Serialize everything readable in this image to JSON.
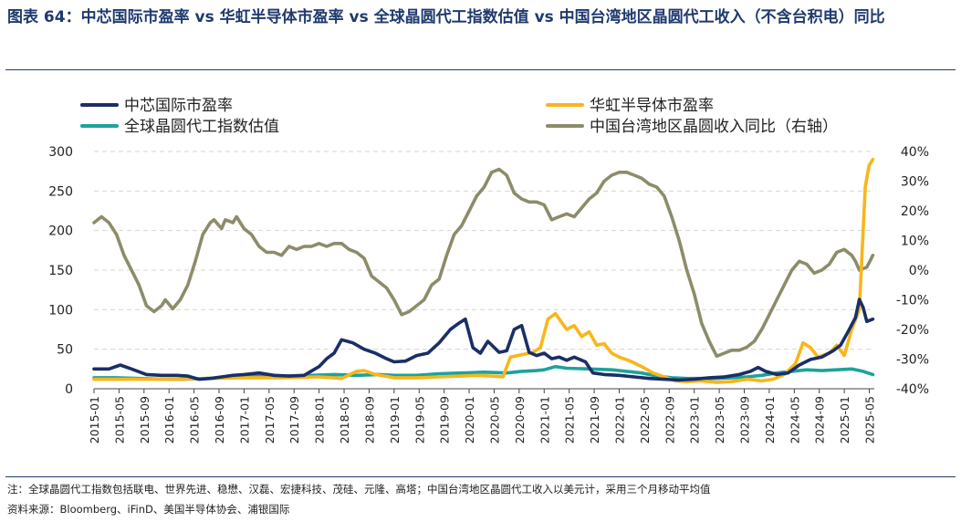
{
  "header": {
    "title": "图表 64：中芯国际市盈率 vs 华虹半导体市盈率 vs 全球晶圆代工指数估值 vs 中国台湾地区晶圆代工收入（不含台积电）同比"
  },
  "footer": {
    "note": "注：全球晶圆代工指数包括联电、世界先进、稳懋、汉磊、宏捷科技、茂硅、元隆、高塔；中国台湾地区晶圆代工收入以美元计，采用三个月移动平均值",
    "source": "资料来源：Bloomberg、iFinD、美国半导体协会、浦银国际"
  },
  "chart_data": {
    "type": "line",
    "title": "",
    "x_ticks": [
      "2015-01",
      "2015-05",
      "2015-09",
      "2016-01",
      "2016-05",
      "2016-09",
      "2017-01",
      "2017-05",
      "2017-09",
      "2018-01",
      "2018-05",
      "2018-09",
      "2019-01",
      "2019-05",
      "2019-09",
      "2020-01",
      "2020-05",
      "2020-09",
      "2021-01",
      "2021-05",
      "2021-09",
      "2022-01",
      "2022-05",
      "2022-09",
      "2023-01",
      "2023-05",
      "2023-09",
      "2024-01",
      "2024-05",
      "2024-09",
      "2025-01",
      "2025-05"
    ],
    "y_left": {
      "min": 0,
      "max": 300,
      "ticks": [
        "0",
        "50",
        "100",
        "150",
        "200",
        "250",
        "300"
      ]
    },
    "y_right": {
      "min": -40,
      "max": 40,
      "ticks": [
        "-40%",
        "-30%",
        "-20%",
        "-10%",
        "0%",
        "10%",
        "20%",
        "30%",
        "40%"
      ]
    },
    "grid": "horizontal dashed",
    "legend_position": "top",
    "colors": {
      "smic": "#1a2f66",
      "hua": "#f8b61a",
      "global": "#1ba39c",
      "taiwan": "#8d8c6a"
    },
    "series": [
      {
        "name": "中芯国际市盈率",
        "key": "smic",
        "axis": "left",
        "points": [
          [
            2015.0,
            25
          ],
          [
            2015.2,
            25
          ],
          [
            2015.35,
            30
          ],
          [
            2015.5,
            25
          ],
          [
            2015.7,
            18
          ],
          [
            2015.9,
            17
          ],
          [
            2016.1,
            17
          ],
          [
            2016.25,
            16
          ],
          [
            2016.4,
            12
          ],
          [
            2016.55,
            13
          ],
          [
            2016.7,
            15
          ],
          [
            2016.85,
            17
          ],
          [
            2017.0,
            18
          ],
          [
            2017.2,
            20
          ],
          [
            2017.4,
            17
          ],
          [
            2017.6,
            16
          ],
          [
            2017.8,
            17
          ],
          [
            2018.0,
            28
          ],
          [
            2018.1,
            38
          ],
          [
            2018.2,
            45
          ],
          [
            2018.3,
            62
          ],
          [
            2018.45,
            58
          ],
          [
            2018.6,
            50
          ],
          [
            2018.75,
            45
          ],
          [
            2018.9,
            38
          ],
          [
            2019.0,
            34
          ],
          [
            2019.15,
            35
          ],
          [
            2019.3,
            42
          ],
          [
            2019.45,
            45
          ],
          [
            2019.6,
            58
          ],
          [
            2019.75,
            75
          ],
          [
            2019.85,
            82
          ],
          [
            2019.95,
            88
          ],
          [
            2020.05,
            52
          ],
          [
            2020.15,
            45
          ],
          [
            2020.25,
            60
          ],
          [
            2020.4,
            46
          ],
          [
            2020.5,
            48
          ],
          [
            2020.6,
            75
          ],
          [
            2020.7,
            80
          ],
          [
            2020.8,
            46
          ],
          [
            2020.9,
            42
          ],
          [
            2021.0,
            45
          ],
          [
            2021.1,
            38
          ],
          [
            2021.2,
            40
          ],
          [
            2021.3,
            36
          ],
          [
            2021.4,
            40
          ],
          [
            2021.55,
            34
          ],
          [
            2021.65,
            20
          ],
          [
            2021.8,
            18
          ],
          [
            2022.0,
            17
          ],
          [
            2022.2,
            15
          ],
          [
            2022.4,
            13
          ],
          [
            2022.6,
            12
          ],
          [
            2022.8,
            11
          ],
          [
            2023.0,
            12
          ],
          [
            2023.2,
            14
          ],
          [
            2023.4,
            15
          ],
          [
            2023.6,
            18
          ],
          [
            2023.75,
            22
          ],
          [
            2023.85,
            27
          ],
          [
            2023.95,
            22
          ],
          [
            2024.1,
            18
          ],
          [
            2024.25,
            20
          ],
          [
            2024.4,
            30
          ],
          [
            2024.55,
            37
          ],
          [
            2024.7,
            40
          ],
          [
            2024.85,
            48
          ],
          [
            2024.95,
            55
          ],
          [
            2025.05,
            72
          ],
          [
            2025.15,
            90
          ],
          [
            2025.2,
            113
          ],
          [
            2025.25,
            103
          ],
          [
            2025.3,
            85
          ],
          [
            2025.38,
            88
          ]
        ]
      },
      {
        "name": "华虹半导体市盈率",
        "key": "hua",
        "axis": "left",
        "points": [
          [
            2015.0,
            12
          ],
          [
            2015.5,
            12
          ],
          [
            2016.0,
            12
          ],
          [
            2016.5,
            13
          ],
          [
            2017.0,
            14
          ],
          [
            2017.5,
            14
          ],
          [
            2018.0,
            15
          ],
          [
            2018.3,
            13
          ],
          [
            2018.5,
            22
          ],
          [
            2018.6,
            23
          ],
          [
            2018.75,
            18
          ],
          [
            2019.0,
            14
          ],
          [
            2019.3,
            14
          ],
          [
            2019.6,
            15
          ],
          [
            2019.9,
            16
          ],
          [
            2020.1,
            17
          ],
          [
            2020.3,
            16
          ],
          [
            2020.45,
            15
          ],
          [
            2020.55,
            40
          ],
          [
            2020.7,
            43
          ],
          [
            2020.85,
            46
          ],
          [
            2020.95,
            52
          ],
          [
            2021.05,
            88
          ],
          [
            2021.15,
            95
          ],
          [
            2021.3,
            75
          ],
          [
            2021.4,
            80
          ],
          [
            2021.5,
            66
          ],
          [
            2021.6,
            72
          ],
          [
            2021.7,
            55
          ],
          [
            2021.8,
            57
          ],
          [
            2021.9,
            45
          ],
          [
            2022.0,
            40
          ],
          [
            2022.15,
            35
          ],
          [
            2022.3,
            28
          ],
          [
            2022.45,
            20
          ],
          [
            2022.6,
            15
          ],
          [
            2022.75,
            10
          ],
          [
            2022.9,
            9
          ],
          [
            2023.1,
            10
          ],
          [
            2023.3,
            8
          ],
          [
            2023.5,
            9
          ],
          [
            2023.7,
            12
          ],
          [
            2023.9,
            10
          ],
          [
            2024.05,
            12
          ],
          [
            2024.2,
            18
          ],
          [
            2024.35,
            32
          ],
          [
            2024.45,
            58
          ],
          [
            2024.55,
            52
          ],
          [
            2024.65,
            40
          ],
          [
            2024.8,
            45
          ],
          [
            2024.9,
            55
          ],
          [
            2025.0,
            42
          ],
          [
            2025.1,
            75
          ],
          [
            2025.2,
            100
          ],
          [
            2025.28,
            255
          ],
          [
            2025.33,
            282
          ],
          [
            2025.38,
            290
          ]
        ]
      },
      {
        "name": "全球晶圆代工指数估值",
        "key": "global",
        "axis": "left",
        "points": [
          [
            2015.0,
            14
          ],
          [
            2015.3,
            14
          ],
          [
            2015.6,
            13
          ],
          [
            2015.9,
            12
          ],
          [
            2016.2,
            12
          ],
          [
            2016.5,
            13
          ],
          [
            2016.8,
            14
          ],
          [
            2017.0,
            15
          ],
          [
            2017.3,
            16
          ],
          [
            2017.6,
            16
          ],
          [
            2017.9,
            17
          ],
          [
            2018.2,
            18
          ],
          [
            2018.5,
            17
          ],
          [
            2018.8,
            18
          ],
          [
            2019.0,
            17
          ],
          [
            2019.3,
            17
          ],
          [
            2019.6,
            19
          ],
          [
            2019.9,
            20
          ],
          [
            2020.2,
            21
          ],
          [
            2020.5,
            20
          ],
          [
            2020.7,
            22
          ],
          [
            2020.9,
            23
          ],
          [
            2021.0,
            24
          ],
          [
            2021.15,
            28
          ],
          [
            2021.3,
            26
          ],
          [
            2021.6,
            25
          ],
          [
            2021.9,
            24
          ],
          [
            2022.1,
            22
          ],
          [
            2022.3,
            20
          ],
          [
            2022.5,
            16
          ],
          [
            2022.7,
            14
          ],
          [
            2022.9,
            13
          ],
          [
            2023.1,
            13
          ],
          [
            2023.3,
            13
          ],
          [
            2023.5,
            14
          ],
          [
            2023.7,
            15
          ],
          [
            2023.9,
            17
          ],
          [
            2024.1,
            20
          ],
          [
            2024.3,
            22
          ],
          [
            2024.5,
            24
          ],
          [
            2024.7,
            23
          ],
          [
            2024.9,
            24
          ],
          [
            2025.1,
            25
          ],
          [
            2025.25,
            22
          ],
          [
            2025.38,
            18
          ]
        ]
      },
      {
        "name": "中国台湾地区晶圆收入同比（右轴）",
        "key": "taiwan",
        "axis": "right",
        "points": [
          [
            2015.0,
            16
          ],
          [
            2015.1,
            18
          ],
          [
            2015.2,
            16
          ],
          [
            2015.3,
            12
          ],
          [
            2015.4,
            5
          ],
          [
            2015.5,
            0
          ],
          [
            2015.6,
            -5
          ],
          [
            2015.7,
            -12
          ],
          [
            2015.8,
            -14
          ],
          [
            2015.9,
            -12
          ],
          [
            2015.95,
            -10
          ],
          [
            2016.05,
            -13
          ],
          [
            2016.15,
            -10
          ],
          [
            2016.25,
            -5
          ],
          [
            2016.35,
            3
          ],
          [
            2016.45,
            12
          ],
          [
            2016.55,
            16
          ],
          [
            2016.6,
            17
          ],
          [
            2016.7,
            14
          ],
          [
            2016.75,
            17
          ],
          [
            2016.85,
            16
          ],
          [
            2016.9,
            18
          ],
          [
            2017.0,
            14
          ],
          [
            2017.1,
            12
          ],
          [
            2017.2,
            8
          ],
          [
            2017.3,
            6
          ],
          [
            2017.4,
            6
          ],
          [
            2017.5,
            5
          ],
          [
            2017.6,
            8
          ],
          [
            2017.7,
            7
          ],
          [
            2017.8,
            8
          ],
          [
            2017.9,
            8
          ],
          [
            2018.0,
            9
          ],
          [
            2018.1,
            8
          ],
          [
            2018.2,
            9
          ],
          [
            2018.3,
            9
          ],
          [
            2018.4,
            7
          ],
          [
            2018.5,
            6
          ],
          [
            2018.6,
            4
          ],
          [
            2018.7,
            -2
          ],
          [
            2018.8,
            -4
          ],
          [
            2018.9,
            -6
          ],
          [
            2019.0,
            -10
          ],
          [
            2019.1,
            -15
          ],
          [
            2019.2,
            -14
          ],
          [
            2019.3,
            -12
          ],
          [
            2019.4,
            -10
          ],
          [
            2019.5,
            -5
          ],
          [
            2019.6,
            -3
          ],
          [
            2019.7,
            5
          ],
          [
            2019.8,
            12
          ],
          [
            2019.9,
            15
          ],
          [
            2020.0,
            20
          ],
          [
            2020.1,
            25
          ],
          [
            2020.2,
            28
          ],
          [
            2020.3,
            33
          ],
          [
            2020.4,
            34
          ],
          [
            2020.5,
            32
          ],
          [
            2020.6,
            26
          ],
          [
            2020.7,
            24
          ],
          [
            2020.8,
            23
          ],
          [
            2020.9,
            23
          ],
          [
            2021.0,
            22
          ],
          [
            2021.1,
            17
          ],
          [
            2021.2,
            18
          ],
          [
            2021.3,
            19
          ],
          [
            2021.4,
            18
          ],
          [
            2021.5,
            21
          ],
          [
            2021.6,
            24
          ],
          [
            2021.7,
            26
          ],
          [
            2021.8,
            30
          ],
          [
            2021.9,
            32
          ],
          [
            2022.0,
            33
          ],
          [
            2022.1,
            33
          ],
          [
            2022.2,
            32
          ],
          [
            2022.3,
            31
          ],
          [
            2022.4,
            29
          ],
          [
            2022.5,
            28
          ],
          [
            2022.6,
            25
          ],
          [
            2022.7,
            18
          ],
          [
            2022.8,
            10
          ],
          [
            2022.9,
            0
          ],
          [
            2023.0,
            -8
          ],
          [
            2023.1,
            -18
          ],
          [
            2023.2,
            -24
          ],
          [
            2023.3,
            -29
          ],
          [
            2023.4,
            -28
          ],
          [
            2023.5,
            -27
          ],
          [
            2023.6,
            -27
          ],
          [
            2023.7,
            -26
          ],
          [
            2023.8,
            -24
          ],
          [
            2023.9,
            -20
          ],
          [
            2024.0,
            -15
          ],
          [
            2024.1,
            -10
          ],
          [
            2024.2,
            -5
          ],
          [
            2024.3,
            0
          ],
          [
            2024.4,
            3
          ],
          [
            2024.5,
            2
          ],
          [
            2024.6,
            -1
          ],
          [
            2024.7,
            0
          ],
          [
            2024.8,
            2
          ],
          [
            2024.9,
            6
          ],
          [
            2025.0,
            7
          ],
          [
            2025.1,
            5
          ],
          [
            2025.15,
            3
          ],
          [
            2025.2,
            0
          ],
          [
            2025.3,
            1
          ],
          [
            2025.38,
            5
          ]
        ]
      }
    ]
  }
}
